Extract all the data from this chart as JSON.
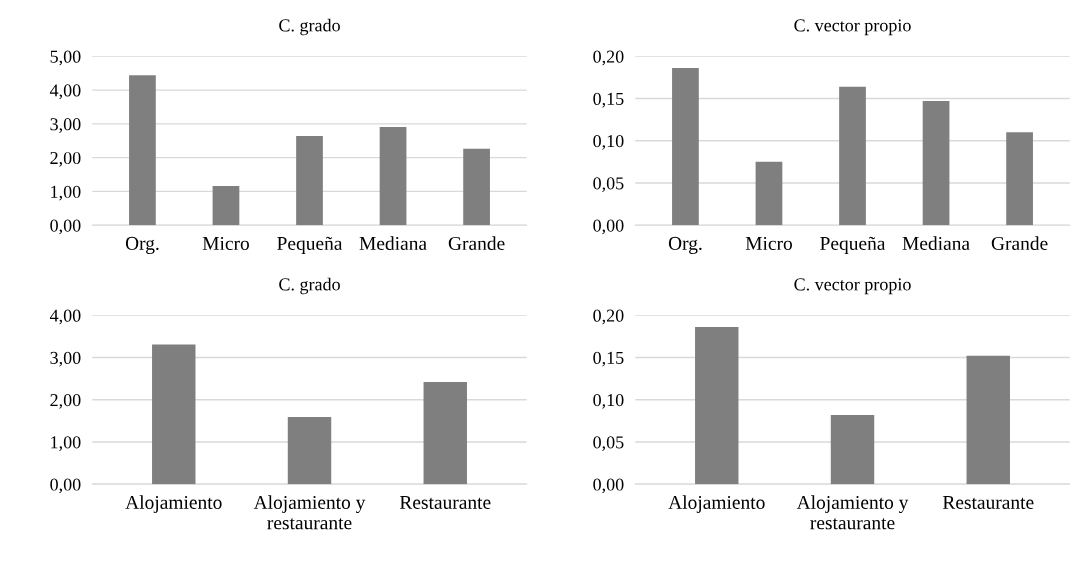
{
  "chart_data": [
    {
      "type": "bar",
      "title": "C. grado",
      "categories": [
        "Org.",
        "Micro",
        "Pequeña",
        "Mediana",
        "Grande"
      ],
      "values": [
        4.44,
        1.16,
        2.64,
        2.91,
        2.26
      ],
      "color": "#7f7f7f",
      "ylim": [
        0,
        5
      ],
      "yticks": [
        {
          "value": 0,
          "label": "0,00"
        },
        {
          "value": 1,
          "label": "1,00"
        },
        {
          "value": 2,
          "label": "2,00"
        },
        {
          "value": 3,
          "label": "3,00"
        },
        {
          "value": 4,
          "label": "4,00"
        },
        {
          "value": 5,
          "label": "5,00"
        }
      ],
      "grid": "y",
      "legend": false
    },
    {
      "type": "bar",
      "title": "C. vector propio",
      "categories": [
        "Org.",
        "Micro",
        "Pequeña",
        "Mediana",
        "Grande"
      ],
      "values": [
        0.186,
        0.075,
        0.164,
        0.147,
        0.11
      ],
      "color": "#7f7f7f",
      "ylim": [
        0,
        0.2
      ],
      "yticks": [
        {
          "value": 0,
          "label": "0,00"
        },
        {
          "value": 0.05,
          "label": "0,05"
        },
        {
          "value": 0.1,
          "label": "0,10"
        },
        {
          "value": 0.15,
          "label": "0,15"
        },
        {
          "value": 0.2,
          "label": "0,20"
        }
      ],
      "grid": "y",
      "legend": false
    },
    {
      "type": "bar",
      "title": "C. grado",
      "categories": [
        "Alojamiento",
        "Alojamiento y\nrestaurante",
        "Restaurante"
      ],
      "values": [
        3.31,
        1.59,
        2.42
      ],
      "color": "#7f7f7f",
      "ylim": [
        0,
        4
      ],
      "yticks": [
        {
          "value": 0,
          "label": "0,00"
        },
        {
          "value": 1,
          "label": "1,00"
        },
        {
          "value": 2,
          "label": "2,00"
        },
        {
          "value": 3,
          "label": "3,00"
        },
        {
          "value": 4,
          "label": "4,00"
        }
      ],
      "grid": "y",
      "legend": false
    },
    {
      "type": "bar",
      "title": "C. vector propio",
      "categories": [
        "Alojamiento",
        "Alojamiento y\nrestaurante",
        "Restaurante"
      ],
      "values": [
        0.186,
        0.082,
        0.152
      ],
      "color": "#7f7f7f",
      "ylim": [
        0,
        0.2
      ],
      "yticks": [
        {
          "value": 0,
          "label": "0,00"
        },
        {
          "value": 0.05,
          "label": "0,05"
        },
        {
          "value": 0.1,
          "label": "0,10"
        },
        {
          "value": 0.15,
          "label": "0,15"
        },
        {
          "value": 0.2,
          "label": "0,20"
        }
      ],
      "grid": "y",
      "legend": false
    }
  ]
}
